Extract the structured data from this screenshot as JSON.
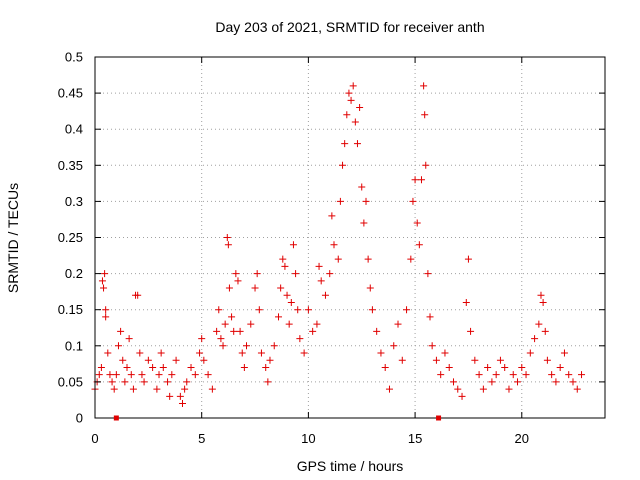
{
  "chart_data": {
    "type": "scatter",
    "title": "Day 203 of 2021, SRMTID for receiver anth",
    "xlabel": "GPS time / hours",
    "ylabel": "SRMTID / TECUs",
    "xlim": [
      0,
      23.9
    ],
    "ylim": [
      0,
      0.5
    ],
    "x_ticks": [
      0,
      5,
      10,
      15,
      20
    ],
    "x_tick_labels": [
      "0",
      "5",
      "10",
      "15",
      "20"
    ],
    "y_ticks": [
      0,
      0.05,
      0.1,
      0.15,
      0.2,
      0.25,
      0.3,
      0.35,
      0.4,
      0.45,
      0.5
    ],
    "y_tick_labels": [
      "0",
      "0.05",
      "0.1",
      "0.15",
      "0.2",
      "0.25",
      "0.3",
      "0.35",
      "0.4",
      "0.45",
      "0.5"
    ],
    "grid": true,
    "marker": "+",
    "color": "#e00000",
    "series": [
      {
        "name": "SRMTID",
        "points": [
          [
            0.0,
            0.04
          ],
          [
            0.1,
            0.05
          ],
          [
            0.2,
            0.06
          ],
          [
            0.3,
            0.07
          ],
          [
            0.35,
            0.19
          ],
          [
            0.4,
            0.18
          ],
          [
            0.45,
            0.2
          ],
          [
            0.5,
            0.15
          ],
          [
            0.5,
            0.14
          ],
          [
            0.6,
            0.09
          ],
          [
            0.7,
            0.06
          ],
          [
            0.8,
            0.05
          ],
          [
            0.9,
            0.04
          ],
          [
            1.0,
            0.06
          ],
          [
            1.1,
            0.1
          ],
          [
            1.2,
            0.12
          ],
          [
            1.3,
            0.08
          ],
          [
            1.4,
            0.05
          ],
          [
            1.5,
            0.07
          ],
          [
            1.6,
            0.11
          ],
          [
            1.7,
            0.06
          ],
          [
            1.8,
            0.04
          ],
          [
            1.9,
            0.17
          ],
          [
            2.0,
            0.17
          ],
          [
            2.1,
            0.09
          ],
          [
            2.2,
            0.06
          ],
          [
            2.3,
            0.05
          ],
          [
            2.5,
            0.08
          ],
          [
            2.7,
            0.07
          ],
          [
            2.9,
            0.04
          ],
          [
            3.0,
            0.06
          ],
          [
            3.1,
            0.09
          ],
          [
            3.2,
            0.07
          ],
          [
            3.4,
            0.05
          ],
          [
            3.5,
            0.03
          ],
          [
            3.6,
            0.06
          ],
          [
            3.8,
            0.08
          ],
          [
            4.0,
            0.03
          ],
          [
            4.1,
            0.02
          ],
          [
            4.2,
            0.04
          ],
          [
            4.3,
            0.05
          ],
          [
            4.5,
            0.07
          ],
          [
            4.7,
            0.06
          ],
          [
            4.9,
            0.09
          ],
          [
            5.0,
            0.11
          ],
          [
            5.1,
            0.08
          ],
          [
            5.3,
            0.06
          ],
          [
            5.5,
            0.04
          ],
          [
            5.7,
            0.12
          ],
          [
            5.8,
            0.15
          ],
          [
            5.9,
            0.11
          ],
          [
            6.0,
            0.1
          ],
          [
            6.1,
            0.13
          ],
          [
            6.2,
            0.25
          ],
          [
            6.25,
            0.24
          ],
          [
            6.3,
            0.18
          ],
          [
            6.4,
            0.14
          ],
          [
            6.5,
            0.12
          ],
          [
            6.6,
            0.2
          ],
          [
            6.7,
            0.19
          ],
          [
            6.8,
            0.12
          ],
          [
            6.9,
            0.09
          ],
          [
            7.0,
            0.07
          ],
          [
            7.1,
            0.1
          ],
          [
            7.3,
            0.13
          ],
          [
            7.5,
            0.18
          ],
          [
            7.6,
            0.2
          ],
          [
            7.7,
            0.15
          ],
          [
            7.8,
            0.09
          ],
          [
            8.0,
            0.07
          ],
          [
            8.1,
            0.05
          ],
          [
            8.2,
            0.08
          ],
          [
            8.4,
            0.1
          ],
          [
            8.6,
            0.14
          ],
          [
            8.7,
            0.18
          ],
          [
            8.8,
            0.22
          ],
          [
            8.9,
            0.21
          ],
          [
            9.0,
            0.17
          ],
          [
            9.1,
            0.13
          ],
          [
            9.2,
            0.16
          ],
          [
            9.3,
            0.24
          ],
          [
            9.4,
            0.2
          ],
          [
            9.5,
            0.15
          ],
          [
            9.6,
            0.11
          ],
          [
            9.8,
            0.09
          ],
          [
            10.0,
            0.15
          ],
          [
            10.2,
            0.12
          ],
          [
            10.4,
            0.13
          ],
          [
            10.5,
            0.21
          ],
          [
            10.6,
            0.19
          ],
          [
            10.8,
            0.17
          ],
          [
            11.0,
            0.2
          ],
          [
            11.1,
            0.28
          ],
          [
            11.2,
            0.24
          ],
          [
            11.4,
            0.22
          ],
          [
            11.5,
            0.3
          ],
          [
            11.6,
            0.35
          ],
          [
            11.7,
            0.38
          ],
          [
            11.8,
            0.42
          ],
          [
            11.9,
            0.45
          ],
          [
            12.0,
            0.44
          ],
          [
            12.1,
            0.46
          ],
          [
            12.2,
            0.41
          ],
          [
            12.3,
            0.38
          ],
          [
            12.4,
            0.43
          ],
          [
            12.5,
            0.32
          ],
          [
            12.6,
            0.27
          ],
          [
            12.7,
            0.3
          ],
          [
            12.8,
            0.22
          ],
          [
            12.9,
            0.18
          ],
          [
            13.0,
            0.15
          ],
          [
            13.2,
            0.12
          ],
          [
            13.4,
            0.09
          ],
          [
            13.6,
            0.07
          ],
          [
            13.8,
            0.04
          ],
          [
            14.0,
            0.1
          ],
          [
            14.2,
            0.13
          ],
          [
            14.4,
            0.08
          ],
          [
            14.6,
            0.15
          ],
          [
            14.8,
            0.22
          ],
          [
            14.9,
            0.3
          ],
          [
            15.0,
            0.33
          ],
          [
            15.1,
            0.27
          ],
          [
            15.2,
            0.24
          ],
          [
            15.3,
            0.33
          ],
          [
            15.4,
            0.46
          ],
          [
            15.45,
            0.42
          ],
          [
            15.5,
            0.35
          ],
          [
            15.6,
            0.2
          ],
          [
            15.7,
            0.14
          ],
          [
            15.8,
            0.1
          ],
          [
            16.0,
            0.08
          ],
          [
            16.2,
            0.06
          ],
          [
            16.4,
            0.09
          ],
          [
            16.6,
            0.07
          ],
          [
            16.8,
            0.05
          ],
          [
            17.0,
            0.04
          ],
          [
            17.2,
            0.03
          ],
          [
            17.4,
            0.16
          ],
          [
            17.5,
            0.22
          ],
          [
            17.6,
            0.12
          ],
          [
            17.8,
            0.08
          ],
          [
            18.0,
            0.06
          ],
          [
            18.2,
            0.04
          ],
          [
            18.4,
            0.07
          ],
          [
            18.6,
            0.05
          ],
          [
            18.8,
            0.06
          ],
          [
            19.0,
            0.08
          ],
          [
            19.2,
            0.07
          ],
          [
            19.4,
            0.04
          ],
          [
            19.6,
            0.06
          ],
          [
            19.8,
            0.05
          ],
          [
            20.0,
            0.07
          ],
          [
            20.2,
            0.06
          ],
          [
            20.4,
            0.09
          ],
          [
            20.6,
            0.11
          ],
          [
            20.8,
            0.13
          ],
          [
            20.9,
            0.17
          ],
          [
            21.0,
            0.16
          ],
          [
            21.1,
            0.12
          ],
          [
            21.2,
            0.08
          ],
          [
            21.4,
            0.06
          ],
          [
            21.6,
            0.05
          ],
          [
            21.8,
            0.07
          ],
          [
            22.0,
            0.09
          ],
          [
            22.2,
            0.06
          ],
          [
            22.4,
            0.05
          ],
          [
            22.6,
            0.04
          ],
          [
            22.8,
            0.06
          ]
        ]
      }
    ],
    "gap_markers_x": [
      1.0,
      16.1
    ]
  }
}
